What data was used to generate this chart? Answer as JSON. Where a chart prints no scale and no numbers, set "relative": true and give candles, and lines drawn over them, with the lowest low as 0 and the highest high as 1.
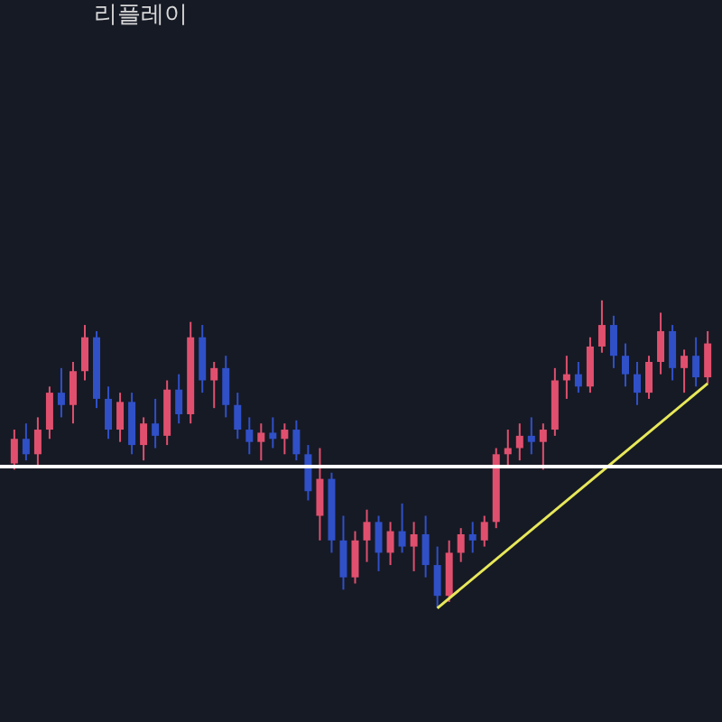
{
  "chart_data": {
    "type": "candlestick",
    "relative": true,
    "categories": [
      null,
      null,
      null,
      null,
      null,
      null,
      null,
      null,
      null,
      null,
      null,
      null,
      null,
      null,
      null,
      null,
      null,
      null,
      null,
      null,
      null,
      null,
      null,
      null,
      null,
      null,
      null,
      null,
      null,
      null,
      null,
      null,
      null,
      null,
      null,
      null,
      null,
      null,
      null,
      null,
      null,
      null,
      null,
      null,
      null,
      null,
      null,
      null,
      null,
      null,
      null,
      null,
      null,
      null,
      null,
      null,
      null,
      null,
      null,
      null
    ],
    "ohlc": [
      [
        0.47,
        0.58,
        0.45,
        0.55
      ],
      [
        0.55,
        0.6,
        0.48,
        0.5
      ],
      [
        0.5,
        0.62,
        0.46,
        0.58
      ],
      [
        0.58,
        0.72,
        0.55,
        0.7
      ],
      [
        0.7,
        0.78,
        0.62,
        0.66
      ],
      [
        0.66,
        0.8,
        0.6,
        0.77
      ],
      [
        0.77,
        0.92,
        0.74,
        0.88
      ],
      [
        0.88,
        0.9,
        0.65,
        0.68
      ],
      [
        0.68,
        0.72,
        0.55,
        0.58
      ],
      [
        0.58,
        0.7,
        0.54,
        0.67
      ],
      [
        0.67,
        0.7,
        0.5,
        0.53
      ],
      [
        0.53,
        0.62,
        0.48,
        0.6
      ],
      [
        0.6,
        0.68,
        0.52,
        0.56
      ],
      [
        0.56,
        0.74,
        0.53,
        0.71
      ],
      [
        0.71,
        0.76,
        0.6,
        0.63
      ],
      [
        0.63,
        0.93,
        0.6,
        0.88
      ],
      [
        0.88,
        0.92,
        0.7,
        0.74
      ],
      [
        0.74,
        0.8,
        0.65,
        0.78
      ],
      [
        0.78,
        0.82,
        0.62,
        0.66
      ],
      [
        0.66,
        0.7,
        0.55,
        0.58
      ],
      [
        0.58,
        0.62,
        0.5,
        0.54
      ],
      [
        0.54,
        0.6,
        0.48,
        0.57
      ],
      [
        0.57,
        0.62,
        0.52,
        0.55
      ],
      [
        0.55,
        0.6,
        0.5,
        0.58
      ],
      [
        0.58,
        0.61,
        0.48,
        0.5
      ],
      [
        0.5,
        0.53,
        0.35,
        0.38
      ],
      [
        0.3,
        0.52,
        0.22,
        0.42
      ],
      [
        0.42,
        0.44,
        0.18,
        0.22
      ],
      [
        0.22,
        0.3,
        0.06,
        0.1
      ],
      [
        0.1,
        0.25,
        0.08,
        0.22
      ],
      [
        0.22,
        0.32,
        0.15,
        0.28
      ],
      [
        0.28,
        0.3,
        0.12,
        0.18
      ],
      [
        0.18,
        0.28,
        0.14,
        0.25
      ],
      [
        0.25,
        0.34,
        0.18,
        0.2
      ],
      [
        0.2,
        0.28,
        0.12,
        0.24
      ],
      [
        0.24,
        0.3,
        0.1,
        0.14
      ],
      [
        0.14,
        0.2,
        0.0,
        0.04
      ],
      [
        0.04,
        0.22,
        0.02,
        0.18
      ],
      [
        0.18,
        0.26,
        0.15,
        0.24
      ],
      [
        0.24,
        0.28,
        0.18,
        0.22
      ],
      [
        0.22,
        0.3,
        0.2,
        0.28
      ],
      [
        0.28,
        0.52,
        0.26,
        0.5
      ],
      [
        0.5,
        0.58,
        0.46,
        0.52
      ],
      [
        0.52,
        0.6,
        0.48,
        0.56
      ],
      [
        0.56,
        0.62,
        0.5,
        0.54
      ],
      [
        0.54,
        0.6,
        0.45,
        0.58
      ],
      [
        0.58,
        0.78,
        0.56,
        0.74
      ],
      [
        0.74,
        0.82,
        0.68,
        0.76
      ],
      [
        0.76,
        0.8,
        0.7,
        0.72
      ],
      [
        0.72,
        0.88,
        0.7,
        0.85
      ],
      [
        0.85,
        1.0,
        0.83,
        0.92
      ],
      [
        0.92,
        0.95,
        0.78,
        0.82
      ],
      [
        0.82,
        0.86,
        0.72,
        0.76
      ],
      [
        0.76,
        0.8,
        0.66,
        0.7
      ],
      [
        0.7,
        0.82,
        0.68,
        0.8
      ],
      [
        0.8,
        0.96,
        0.76,
        0.9
      ],
      [
        0.9,
        0.92,
        0.74,
        0.78
      ],
      [
        0.78,
        0.84,
        0.7,
        0.82
      ],
      [
        0.82,
        0.88,
        0.72,
        0.75
      ],
      [
        0.75,
        0.9,
        0.73,
        0.86
      ]
    ],
    "colors": [
      "#e0506e",
      "#3050c8",
      "#e0506e",
      "#e0506e",
      "#3050c8",
      "#e0506e",
      "#e0506e",
      "#3050c8",
      "#3050c8",
      "#e0506e",
      "#3050c8",
      "#e0506e",
      "#3050c8",
      "#e0506e",
      "#3050c8",
      "#e0506e",
      "#3050c8",
      "#e0506e",
      "#3050c8",
      "#3050c8",
      "#3050c8",
      "#e0506e",
      "#3050c8",
      "#e0506e",
      "#3050c8",
      "#3050c8",
      "#e0506e",
      "#3050c8",
      "#3050c8",
      "#e0506e",
      "#e0506e",
      "#3050c8",
      "#e0506e",
      "#3050c8",
      "#e0506e",
      "#3050c8",
      "#3050c8",
      "#e0506e",
      "#e0506e",
      "#3050c8",
      "#e0506e",
      "#e0506e",
      "#e0506e",
      "#e0506e",
      "#3050c8",
      "#e0506e",
      "#e0506e",
      "#e0506e",
      "#3050c8",
      "#e0506e",
      "#e0506e",
      "#3050c8",
      "#3050c8",
      "#3050c8",
      "#e0506e",
      "#e0506e",
      "#3050c8",
      "#e0506e",
      "#3050c8",
      "#e0506e"
    ],
    "series": [
      {
        "type": "line",
        "color": "#e8e85a",
        "values": [
          null,
          null,
          null,
          null,
          null,
          null,
          null,
          null,
          null,
          null,
          null,
          null,
          null,
          null,
          null,
          null,
          null,
          null,
          null,
          null,
          null,
          null,
          null,
          null,
          null,
          null,
          null,
          null,
          null,
          null,
          null,
          null,
          null,
          null,
          null,
          null,
          0.0,
          null,
          null,
          null,
          null,
          null,
          null,
          null,
          null,
          null,
          null,
          null,
          null,
          null,
          null,
          null,
          null,
          null,
          null,
          null,
          null,
          null,
          null,
          0.73
        ]
      }
    ],
    "ref_lines": [
      {
        "axis": "y",
        "value": 0.46,
        "color": "#ffffff"
      }
    ],
    "annotations": [
      "리플레이"
    ]
  }
}
